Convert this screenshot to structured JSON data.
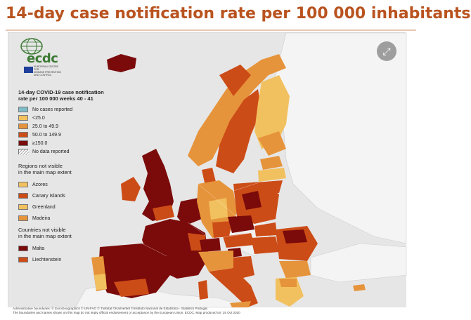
{
  "title": "14-day case notification rate per 100 000 inhabitants",
  "logo": {
    "name": "ecdc",
    "sub_lines": [
      "EUROPEAN CENTRE FOR",
      "DISEASE PREVENTION",
      "AND CONTROL"
    ]
  },
  "expand_icon": "expand-arrows-icon",
  "legend": {
    "title_line1": "14-day COVID-19 case notification",
    "title_line2": "rate per 100 000 weeks 40 - 41",
    "items": [
      {
        "label": "No cases reported",
        "color": "#7fbcc8"
      },
      {
        "label": "<25.0",
        "color": "#f2c15f"
      },
      {
        "label": "25.0 to 49.9",
        "color": "#e6943b"
      },
      {
        "label": "50.0 to 149.9",
        "color": "#cc4c17"
      },
      {
        "label": "≥150.0",
        "color": "#7b0a0a"
      },
      {
        "label": "No data reported",
        "color": "hatched"
      }
    ],
    "regions_title_line1": "Regions not visible",
    "regions_title_line2": "in the main map extent",
    "regions": [
      {
        "label": "Azores",
        "color": "#f2c15f"
      },
      {
        "label": "Canary Islands",
        "color": "#cc4c17"
      },
      {
        "label": "Greenland",
        "color": "#f2c15f"
      },
      {
        "label": "Madeira",
        "color": "#e6943b"
      }
    ],
    "countries_title_line1": "Countries not visible",
    "countries_title_line2": "in the main map extent",
    "countries": [
      {
        "label": "Malta",
        "color": "#7b0a0a"
      },
      {
        "label": "Liechtenstein",
        "color": "#cc4c17"
      }
    ]
  },
  "footer": {
    "line1": "Administrative boundaries: © EuroGeographics © UN-FAO © Turkstat ©Kartverket ©Instituto Nacional de Estatística - Statistics Portugal.",
    "line2": "The boundaries and names shown on this map do not imply official endorsement or acceptance by the European Union. ECDC. Map produced on: 15 Oct 2020"
  }
}
